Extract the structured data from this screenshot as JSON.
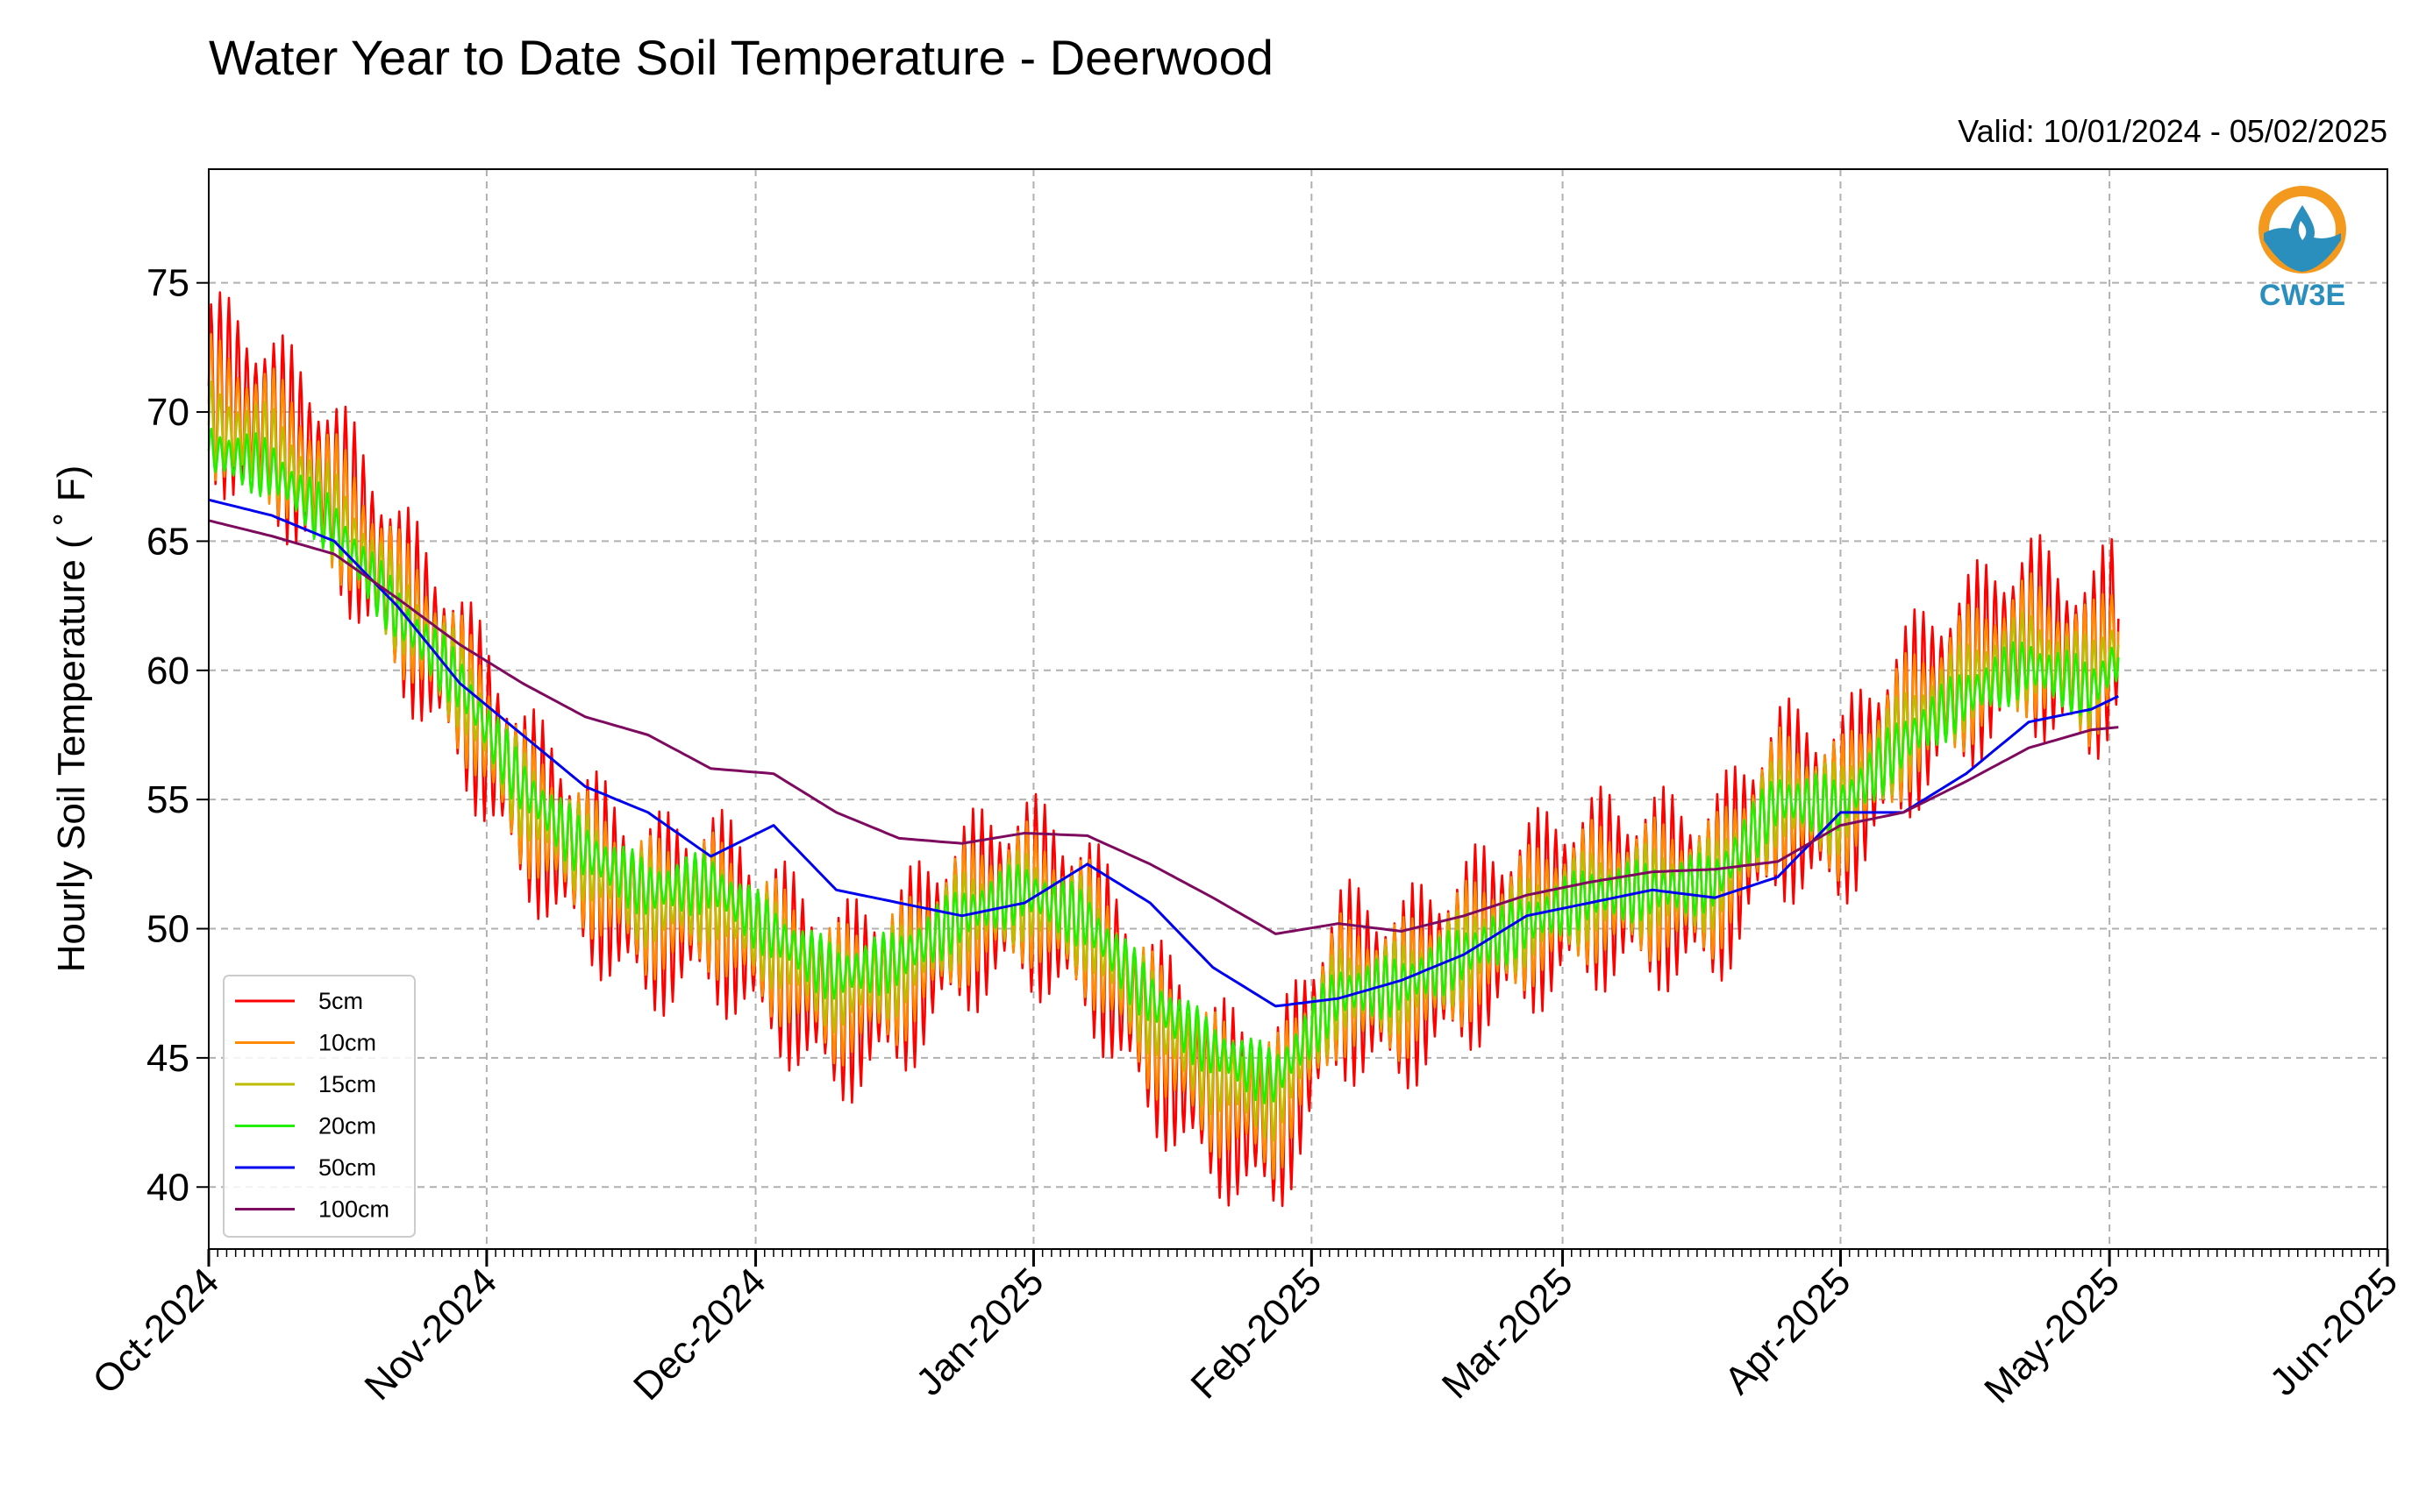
{
  "chart_data": {
    "type": "line",
    "title": "Water Year to Date Soil Temperature - Deerwood",
    "subtitle": "Valid: 10/01/2024 - 05/02/2025",
    "ylabel": "Hourly Soil Temperature ($^\\circ$F)",
    "ylabel_display": "Hourly Soil Temperature ( ˚ F)",
    "xlabel": "",
    "ylim": [
      37.6,
      79.4
    ],
    "xlim": [
      "2024-10-01",
      "2025-06-01"
    ],
    "yticks": [
      40,
      45,
      50,
      55,
      60,
      65,
      70,
      75
    ],
    "x_tick_dates": [
      "2024-10-01",
      "2024-11-01",
      "2024-12-01",
      "2025-01-01",
      "2025-02-01",
      "2025-03-01",
      "2025-04-01",
      "2025-05-01",
      "2025-06-01"
    ],
    "x_tick_labels": [
      "Oct-2024",
      "Nov-2024",
      "Dec-2024",
      "Jan-2025",
      "Feb-2025",
      "Mar-2025",
      "Apr-2025",
      "May-2025",
      "Jun-2025"
    ],
    "grid": true,
    "legend_position": "lower left",
    "x": [
      "2024-10-01",
      "2024-10-08",
      "2024-10-15",
      "2024-10-22",
      "2024-10-29",
      "2024-11-05",
      "2024-11-12",
      "2024-11-19",
      "2024-11-26",
      "2024-12-03",
      "2024-12-10",
      "2024-12-17",
      "2024-12-24",
      "2024-12-31",
      "2025-01-07",
      "2025-01-14",
      "2025-01-21",
      "2025-01-28",
      "2025-02-04",
      "2025-02-11",
      "2025-02-18",
      "2025-02-25",
      "2025-03-04",
      "2025-03-11",
      "2025-03-18",
      "2025-03-25",
      "2025-04-01",
      "2025-04-08",
      "2025-04-15",
      "2025-04-22",
      "2025-04-29",
      "2025-05-02"
    ],
    "series": [
      {
        "name": "5cm",
        "color": "#ff0000",
        "swing": 4.0,
        "values": [
          71.0,
          69.5,
          67.0,
          63.0,
          59.5,
          55.0,
          52.5,
          50.5,
          51.0,
          49.0,
          47.0,
          48.0,
          50.5,
          51.5,
          50.0,
          46.0,
          43.5,
          42.5,
          48.0,
          47.5,
          49.0,
          50.5,
          51.5,
          51.5,
          51.5,
          55.0,
          54.5,
          58.0,
          60.0,
          61.5,
          60.0,
          62.0
        ]
      },
      {
        "name": "10cm",
        "color": "#ff8c00",
        "swing": 2.8,
        "values": [
          70.3,
          69.0,
          66.5,
          62.8,
          59.5,
          55.0,
          52.6,
          50.8,
          51.0,
          49.2,
          47.4,
          48.2,
          50.5,
          51.4,
          50.0,
          46.4,
          44.0,
          43.0,
          47.8,
          47.6,
          49.0,
          50.4,
          51.4,
          51.5,
          51.6,
          55.0,
          54.6,
          57.8,
          59.7,
          61.0,
          59.8,
          61.5
        ]
      },
      {
        "name": "15cm",
        "color": "#bdbd00",
        "swing": 1.8,
        "values": [
          69.5,
          68.5,
          66.0,
          62.5,
          59.5,
          55.2,
          52.8,
          51.0,
          51.3,
          49.4,
          47.7,
          48.4,
          50.5,
          51.3,
          50.1,
          46.8,
          44.5,
          43.5,
          47.6,
          47.7,
          49.0,
          50.3,
          51.3,
          51.5,
          51.7,
          55.0,
          54.6,
          57.5,
          59.4,
          60.6,
          59.5,
          61.0
        ]
      },
      {
        "name": "20cm",
        "color": "#22ee00",
        "swing": 1.2,
        "values": [
          68.5,
          67.8,
          65.5,
          62.2,
          59.5,
          55.5,
          53.0,
          51.5,
          51.8,
          49.8,
          48.2,
          48.8,
          50.5,
          51.5,
          50.3,
          47.3,
          45.3,
          44.2,
          47.5,
          47.8,
          49.0,
          50.2,
          51.3,
          51.5,
          51.8,
          55.0,
          54.7,
          57.2,
          59.0,
          60.2,
          59.2,
          60.5
        ]
      },
      {
        "name": "50cm",
        "color": "#0000ee",
        "swing": 0,
        "values": [
          66.6,
          66.0,
          65.0,
          62.5,
          59.5,
          57.5,
          55.5,
          54.5,
          52.8,
          54.0,
          51.5,
          51.0,
          50.5,
          51.0,
          52.5,
          51.0,
          48.5,
          47.0,
          47.3,
          48.0,
          49.0,
          50.5,
          51.0,
          51.5,
          51.2,
          52.0,
          54.5,
          54.5,
          56.0,
          58.0,
          58.5,
          59.0
        ]
      },
      {
        "name": "100cm",
        "color": "#7d0a5e",
        "swing": 0,
        "values": [
          65.8,
          65.2,
          64.5,
          62.8,
          61.0,
          59.5,
          58.2,
          57.5,
          56.2,
          56.0,
          54.5,
          53.5,
          53.3,
          53.7,
          53.6,
          52.5,
          51.2,
          49.8,
          50.2,
          49.9,
          50.5,
          51.3,
          51.8,
          52.2,
          52.3,
          52.6,
          54.0,
          54.5,
          55.7,
          57.0,
          57.7,
          57.8
        ]
      }
    ]
  },
  "logo": {
    "text": "CW3E",
    "color": "#2a8fbd",
    "accent": "#f39a1e"
  }
}
